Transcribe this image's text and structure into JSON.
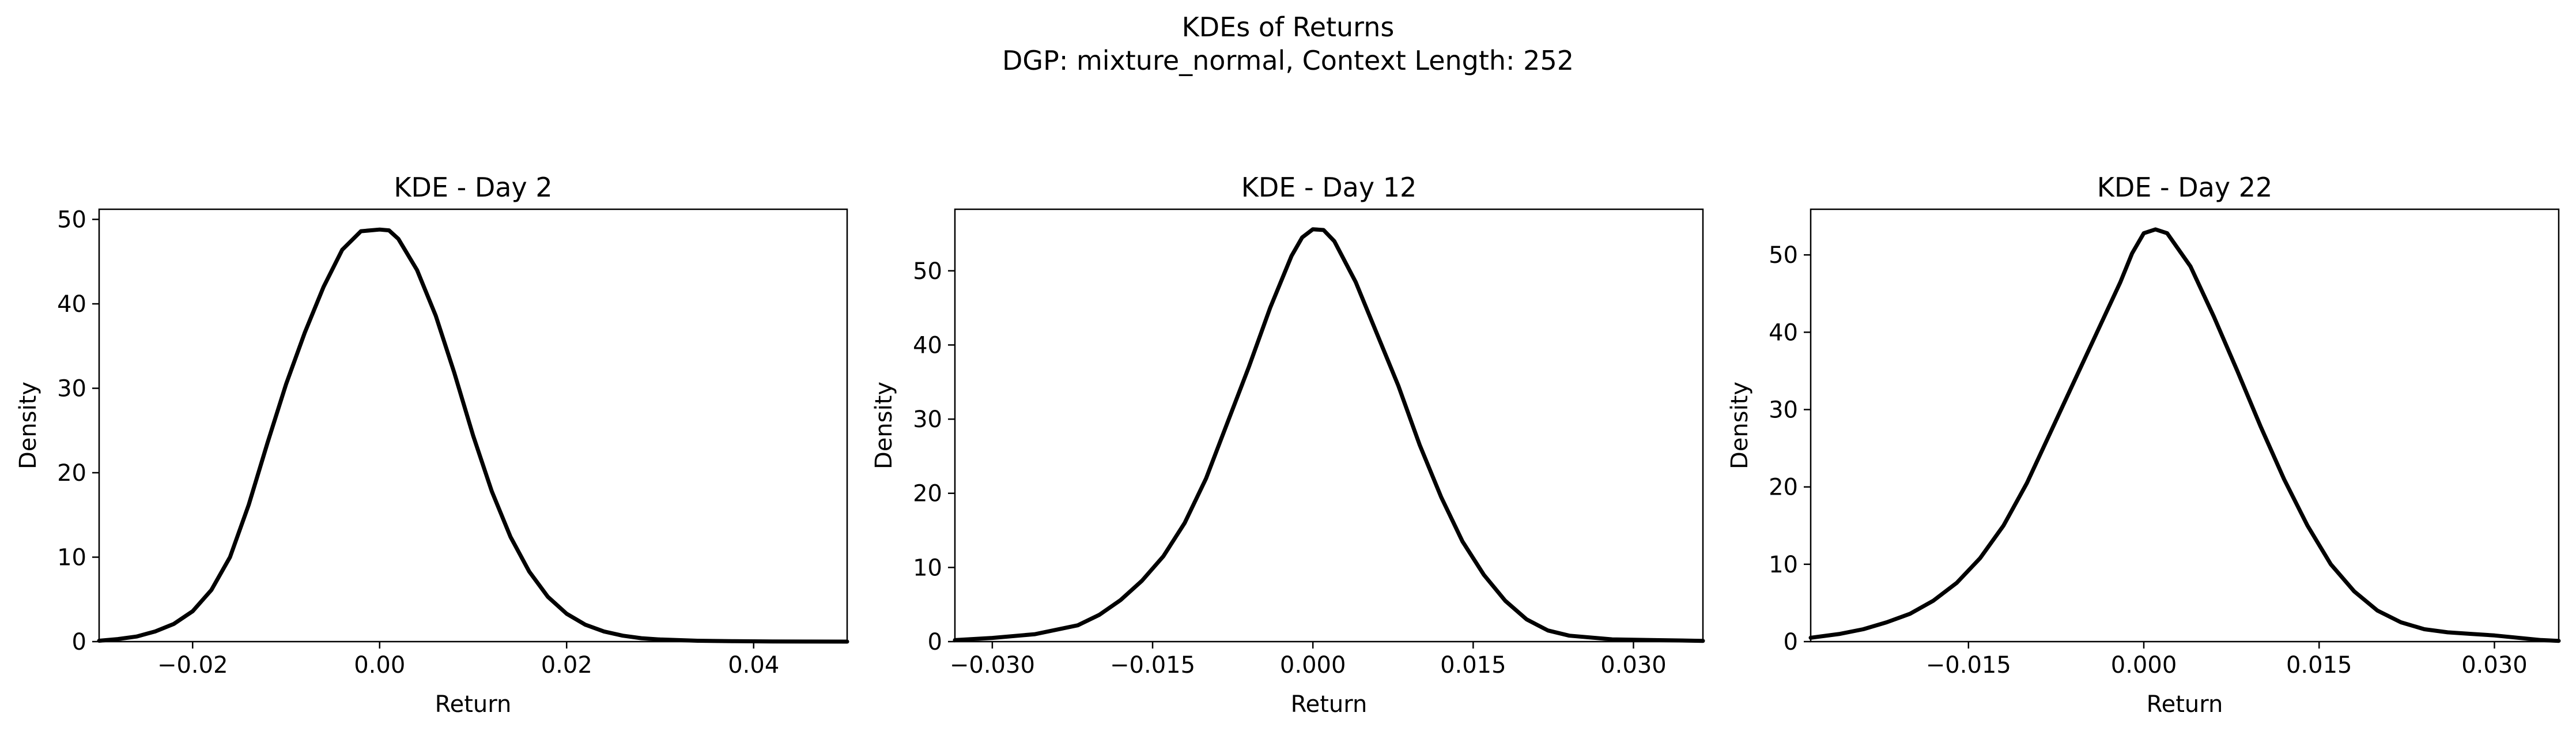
{
  "figure": {
    "title_line1": "KDEs of Returns",
    "title_line2": "DGP: mixture_normal, Context Length: 252"
  },
  "chart_data": [
    {
      "type": "line",
      "title": "KDE - Day 2",
      "xlabel": "Return",
      "ylabel": "Density",
      "xlim": [
        -0.03,
        0.05
      ],
      "ylim": [
        0,
        51.2
      ],
      "xticks": [
        -0.02,
        0.0,
        0.02,
        0.04
      ],
      "xtick_labels": [
        "−0.02",
        "0.00",
        "0.02",
        "0.04"
      ],
      "yticks": [
        0,
        10,
        20,
        30,
        40,
        50
      ],
      "ytick_labels": [
        "0",
        "10",
        "20",
        "30",
        "40",
        "50"
      ],
      "grid": false,
      "series": [
        {
          "color": "#000000",
          "x": [
            -0.03,
            -0.028,
            -0.026,
            -0.024,
            -0.022,
            -0.02,
            -0.018,
            -0.016,
            -0.014,
            -0.012,
            -0.01,
            -0.008,
            -0.006,
            -0.004,
            -0.002,
            0.0,
            0.001,
            0.002,
            0.004,
            0.006,
            0.008,
            0.01,
            0.012,
            0.014,
            0.016,
            0.018,
            0.02,
            0.022,
            0.024,
            0.026,
            0.028,
            0.03,
            0.034,
            0.038,
            0.042,
            0.046,
            0.05
          ],
          "y": [
            0.1,
            0.3,
            0.6,
            1.2,
            2.1,
            3.6,
            6.1,
            10.0,
            16.2,
            23.5,
            30.5,
            36.6,
            42.0,
            46.4,
            48.6,
            48.8,
            48.7,
            47.7,
            44.0,
            38.6,
            31.8,
            24.4,
            17.8,
            12.4,
            8.3,
            5.3,
            3.3,
            2.0,
            1.2,
            0.7,
            0.4,
            0.25,
            0.1,
            0.05,
            0.02,
            0.01,
            0.0
          ]
        }
      ]
    },
    {
      "type": "line",
      "title": "KDE - Day 12",
      "xlabel": "Return",
      "ylabel": "Density",
      "xlim": [
        -0.0335,
        0.0365
      ],
      "ylim": [
        0,
        58.3
      ],
      "xticks": [
        -0.03,
        -0.015,
        0.0,
        0.015,
        0.03
      ],
      "xtick_labels": [
        "−0.030",
        "−0.015",
        "0.000",
        "0.015",
        "0.030"
      ],
      "yticks": [
        0,
        10,
        20,
        30,
        40,
        50
      ],
      "ytick_labels": [
        "0",
        "10",
        "20",
        "30",
        "40",
        "50"
      ],
      "grid": false,
      "series": [
        {
          "color": "#000000",
          "x": [
            -0.0335,
            -0.03,
            -0.026,
            -0.022,
            -0.02,
            -0.018,
            -0.016,
            -0.014,
            -0.012,
            -0.01,
            -0.008,
            -0.006,
            -0.004,
            -0.002,
            -0.001,
            0.0,
            0.001,
            0.002,
            0.004,
            0.006,
            0.008,
            0.01,
            0.012,
            0.014,
            0.016,
            0.018,
            0.02,
            0.022,
            0.024,
            0.028,
            0.032,
            0.0365
          ],
          "y": [
            0.2,
            0.5,
            1.0,
            2.2,
            3.6,
            5.6,
            8.2,
            11.5,
            16.0,
            22.0,
            29.5,
            37.0,
            45.0,
            52.0,
            54.5,
            55.6,
            55.5,
            54.0,
            48.5,
            41.5,
            34.5,
            26.5,
            19.5,
            13.5,
            9.0,
            5.5,
            3.0,
            1.5,
            0.8,
            0.3,
            0.2,
            0.1
          ]
        }
      ]
    },
    {
      "type": "line",
      "title": "KDE - Day 22",
      "xlabel": "Return",
      "ylabel": "Density",
      "xlim": [
        -0.0285,
        0.0355
      ],
      "ylim": [
        0,
        55.9
      ],
      "xticks": [
        -0.015,
        0.0,
        0.015,
        0.03
      ],
      "xtick_labels": [
        "−0.015",
        "0.000",
        "0.015",
        "0.030"
      ],
      "yticks": [
        0,
        10,
        20,
        30,
        40,
        50
      ],
      "ytick_labels": [
        "0",
        "10",
        "20",
        "30",
        "40",
        "50"
      ],
      "grid": false,
      "series": [
        {
          "color": "#000000",
          "x": [
            -0.0285,
            -0.026,
            -0.024,
            -0.022,
            -0.02,
            -0.018,
            -0.016,
            -0.014,
            -0.012,
            -0.01,
            -0.008,
            -0.006,
            -0.004,
            -0.002,
            -0.001,
            0.0,
            0.001,
            0.002,
            0.004,
            0.006,
            0.008,
            0.01,
            0.012,
            0.014,
            0.016,
            0.018,
            0.02,
            0.022,
            0.024,
            0.026,
            0.028,
            0.03,
            0.032,
            0.034,
            0.0355
          ],
          "y": [
            0.5,
            1.0,
            1.6,
            2.5,
            3.6,
            5.3,
            7.6,
            10.8,
            15.0,
            20.5,
            27.0,
            33.5,
            40.0,
            46.5,
            50.2,
            52.8,
            53.3,
            52.8,
            48.5,
            42.0,
            35.0,
            27.8,
            21.0,
            15.0,
            10.0,
            6.5,
            4.0,
            2.5,
            1.6,
            1.2,
            1.0,
            0.8,
            0.5,
            0.2,
            0.1
          ]
        }
      ]
    }
  ]
}
